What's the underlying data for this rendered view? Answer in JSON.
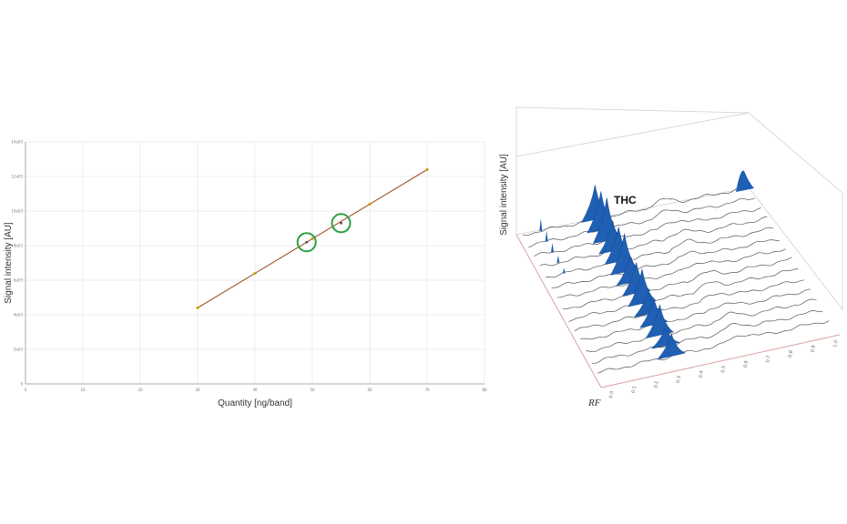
{
  "chart_data": [
    {
      "type": "scatter",
      "title": "",
      "xlabel": "Quantity [ng/band]",
      "ylabel": "Signal intensity [AU]",
      "xlim": [
        0,
        80
      ],
      "ylim": [
        0,
        14000
      ],
      "x_ticks": [
        "0",
        "10",
        "20",
        "30",
        "40",
        "50",
        "60",
        "70",
        "80"
      ],
      "y_ticks": [
        "0",
        "2e03",
        "4e03",
        "6e03",
        "8e03",
        "10e03",
        "12e03",
        "14e03"
      ],
      "grid": true,
      "series": [
        {
          "role": "calibration",
          "x": [
            30,
            40,
            50,
            60,
            70
          ],
          "y": [
            4400,
            6400,
            8400,
            10400,
            12400
          ],
          "color": "#c8a21a"
        },
        {
          "role": "samples",
          "x": [
            49,
            55
          ],
          "y": [
            8200,
            9300
          ],
          "color": "#2ea043"
        }
      ],
      "regression_line": {
        "x": [
          30,
          70
        ],
        "y": [
          4400,
          12400
        ],
        "color": "#a0522d"
      }
    },
    {
      "type": "line",
      "chart_subtype": "3d-stacked-densitograms",
      "xlabel": "RF",
      "ylabel": "Signal intensity [AU]",
      "annotation": "THC",
      "rf_ticks": [
        "0.0",
        "0.1",
        "0.2",
        "0.3",
        "0.4",
        "0.5",
        "0.6",
        "0.7",
        "0.8",
        "0.9",
        "1.0"
      ],
      "track_count": 14,
      "peak_color": "#1f5fb4"
    }
  ]
}
